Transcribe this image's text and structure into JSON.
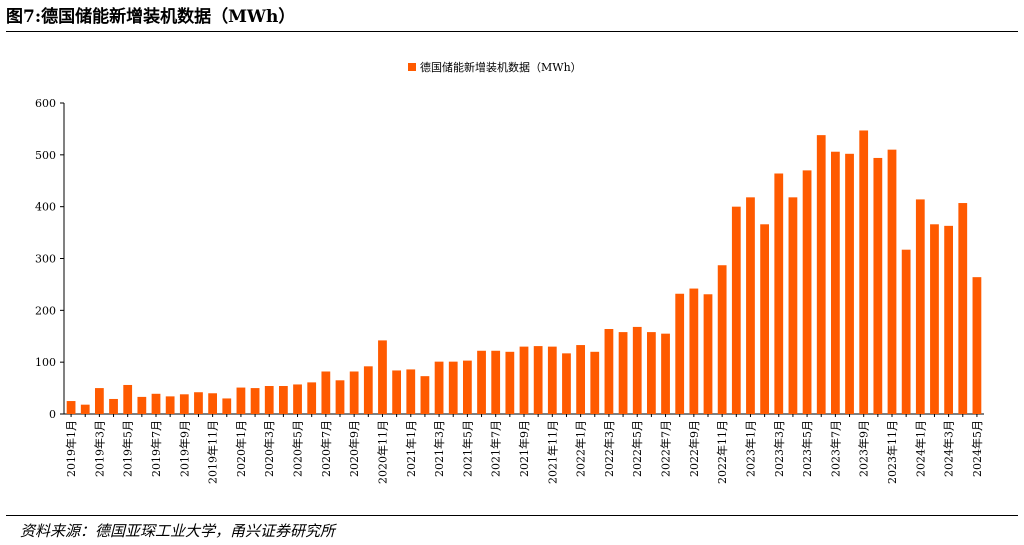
{
  "header": {
    "title": "图7:德国储能新增装机数据（MWh）"
  },
  "footer": {
    "source": "资料来源：德国亚琛工业大学，甬兴证券研究所"
  },
  "colors": {
    "bar": "#FF5A00",
    "axis": "#000000",
    "text": "#000000"
  },
  "chart_data": {
    "type": "bar",
    "title": "",
    "xlabel": "",
    "ylabel": "",
    "ylim": [
      0,
      600
    ],
    "yticks": [
      0,
      100,
      200,
      300,
      400,
      500,
      600
    ],
    "grid": false,
    "legend_position": "top-center",
    "categories": [
      "2019年1月",
      "2019年2月",
      "2019年3月",
      "2019年4月",
      "2019年5月",
      "2019年6月",
      "2019年7月",
      "2019年8月",
      "2019年9月",
      "2019年10月",
      "2019年11月",
      "2019年12月",
      "2020年1月",
      "2020年2月",
      "2020年3月",
      "2020年4月",
      "2020年5月",
      "2020年6月",
      "2020年7月",
      "2020年8月",
      "2020年9月",
      "2020年10月",
      "2020年11月",
      "2020年12月",
      "2021年1月",
      "2021年2月",
      "2021年3月",
      "2021年4月",
      "2021年5月",
      "2021年6月",
      "2021年7月",
      "2021年8月",
      "2021年9月",
      "2021年10月",
      "2021年11月",
      "2021年12月",
      "2022年1月",
      "2022年2月",
      "2022年3月",
      "2022年4月",
      "2022年5月",
      "2022年6月",
      "2022年7月",
      "2022年8月",
      "2022年9月",
      "2022年10月",
      "2022年11月",
      "2022年12月",
      "2023年1月",
      "2023年2月",
      "2023年3月",
      "2023年4月",
      "2023年5月",
      "2023年6月",
      "2023年7月",
      "2023年8月",
      "2023年9月",
      "2023年10月",
      "2023年11月",
      "2023年12月",
      "2024年1月",
      "2024年2月",
      "2024年3月",
      "2024年4月",
      "2024年5月"
    ],
    "series": [
      {
        "name": "德国储能新增装机数据（MWh）",
        "values": [
          25,
          18,
          50,
          29,
          56,
          33,
          39,
          34,
          38,
          42,
          40,
          30,
          51,
          50,
          54,
          54,
          57,
          61,
          82,
          65,
          82,
          92,
          142,
          84,
          86,
          73,
          101,
          101,
          103,
          122,
          122,
          120,
          130,
          131,
          130,
          117,
          133,
          120,
          164,
          158,
          168,
          158,
          155,
          232,
          242,
          231,
          287,
          400,
          418,
          366,
          464,
          418,
          470,
          538,
          506,
          502,
          547,
          494,
          510,
          317,
          414,
          366,
          363,
          407,
          264
        ]
      }
    ]
  }
}
